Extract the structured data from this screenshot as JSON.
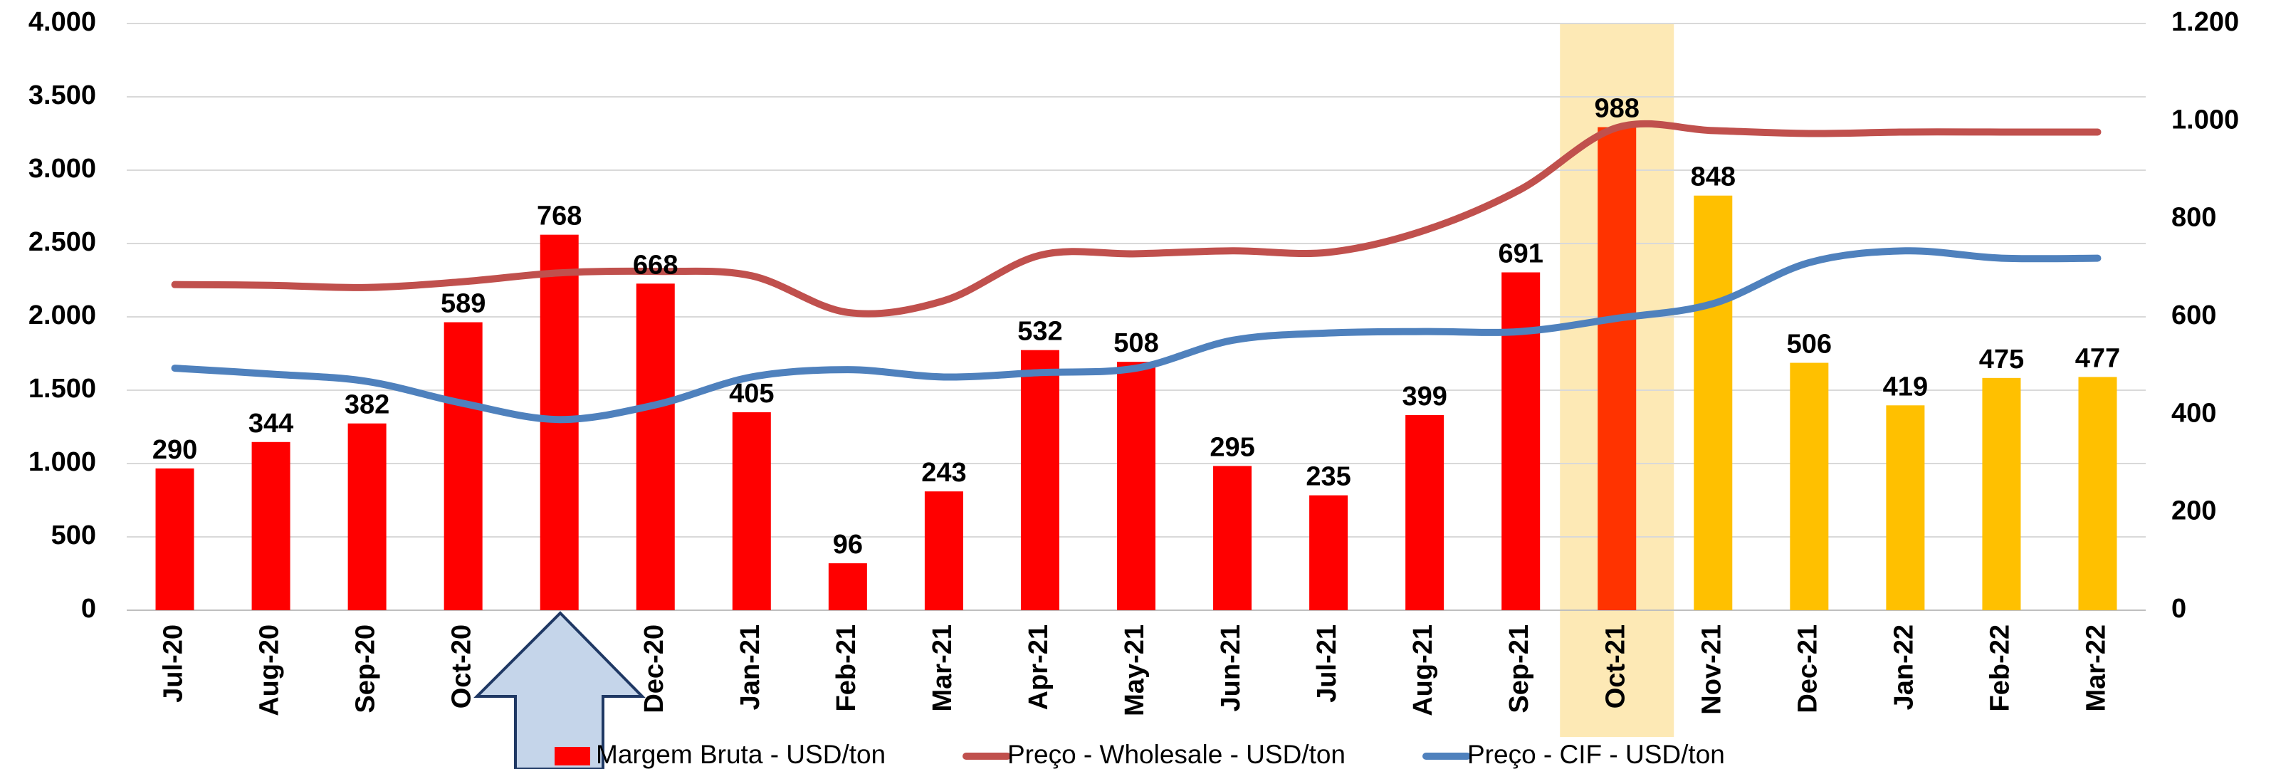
{
  "chart_data": {
    "type": "bar",
    "categories": [
      "Jul-20",
      "Aug-20",
      "Sep-20",
      "Oct-20",
      "Nov-20",
      "Dec-20",
      "Jan-21",
      "Feb-21",
      "Mar-21",
      "Apr-21",
      "May-21",
      "Jun-21",
      "Jul-21",
      "Aug-21",
      "Sep-21",
      "Oct-21",
      "Nov-21",
      "Dec-21",
      "Jan-22",
      "Feb-22",
      "Mar-22"
    ],
    "series": [
      {
        "name": "Margem Bruta - USD/ton",
        "type": "bar",
        "axis": "y2",
        "color": "#ff0000",
        "colors": [
          "#ff0000",
          "#ff0000",
          "#ff0000",
          "#ff0000",
          "#ff0000",
          "#ff0000",
          "#ff0000",
          "#ff0000",
          "#ff0000",
          "#ff0000",
          "#ff0000",
          "#ff0000",
          "#ff0000",
          "#ff0000",
          "#ff0000",
          "#ff3300",
          "#ffc000",
          "#ffc000",
          "#ffc000",
          "#ffc000",
          "#ffc000"
        ],
        "values": [
          290,
          344,
          382,
          589,
          768,
          668,
          405,
          96,
          243,
          532,
          508,
          295,
          235,
          399,
          691,
          988,
          848,
          506,
          419,
          475,
          477
        ]
      },
      {
        "name": "Preço - Wholesale - USD/ton",
        "type": "line",
        "color": "#c0504d",
        "values": [
          2220,
          2215,
          2200,
          2240,
          2300,
          2310,
          2280,
          2030,
          2110,
          2420,
          2430,
          2450,
          2440,
          2590,
          2870,
          3290,
          3270,
          3250,
          3260,
          3260,
          3260
        ]
      },
      {
        "name": "Preço - CIF - USD/ton",
        "type": "line",
        "color": "#4f81bd",
        "values": [
          1650,
          1610,
          1560,
          1410,
          1300,
          1400,
          1590,
          1640,
          1590,
          1620,
          1650,
          1840,
          1890,
          1900,
          1900,
          1990,
          2090,
          2370,
          2450,
          2400,
          2400
        ]
      }
    ],
    "ylim": [
      0,
      4000
    ],
    "yticks": [
      0,
      500,
      {
        "value": 1000,
        "label": "1.000"
      },
      {
        "value": 1500,
        "label": "1.500"
      },
      {
        "value": 2000,
        "label": "2.000"
      },
      {
        "value": 2500,
        "label": "2.500"
      },
      {
        "value": 3000,
        "label": "3.000"
      },
      {
        "value": 3500,
        "label": "3.500"
      },
      {
        "value": 4000,
        "label": "4.000"
      }
    ],
    "y2lim": [
      0,
      1200
    ],
    "y2ticks": [
      0,
      200,
      400,
      600,
      800,
      {
        "value": 1000,
        "label": "1.000"
      },
      {
        "value": 1200,
        "label": "1.200"
      }
    ],
    "grid": true
  }
}
